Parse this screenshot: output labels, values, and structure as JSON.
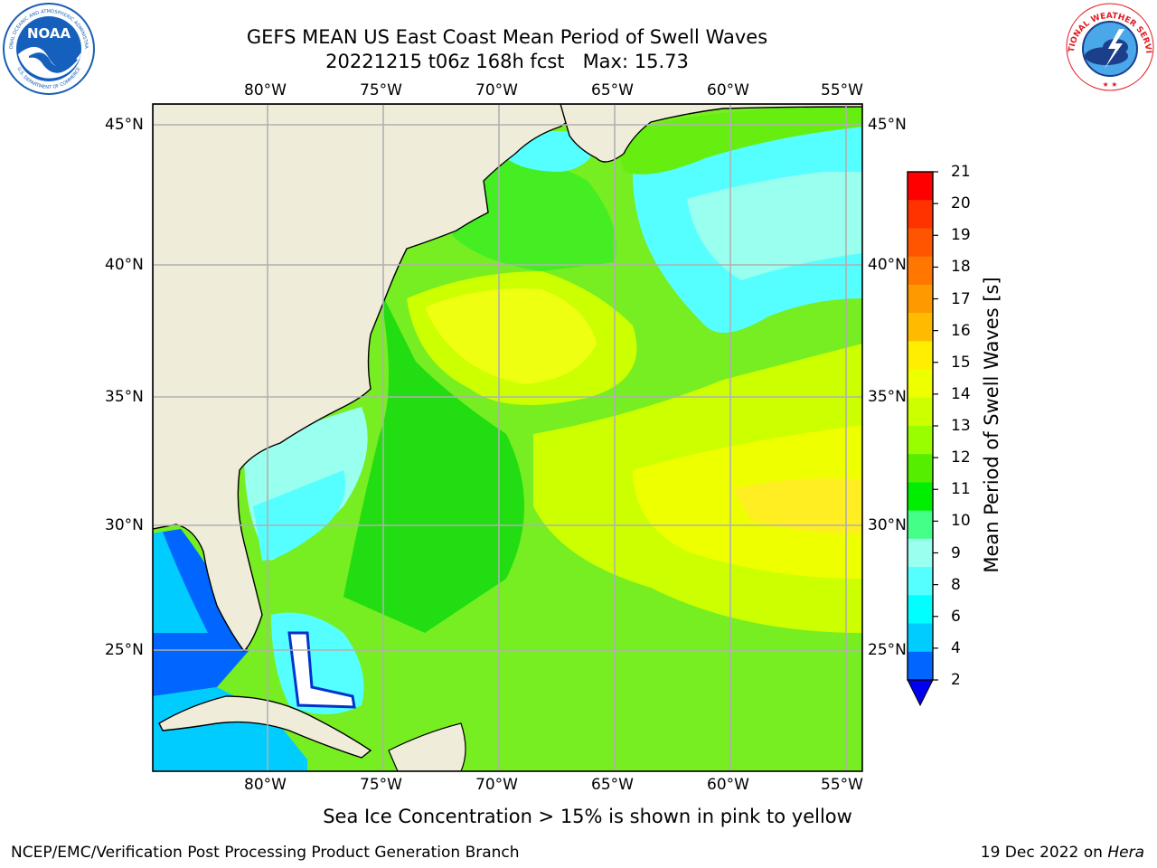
{
  "title": {
    "line1": "GEFS MEAN US East Coast Mean Period of Swell Waves",
    "line2": "20221215 t06z 168h fcst   Max: 15.73"
  },
  "logos": {
    "left": {
      "text": "NOAA",
      "arc_text": "NATIONAL OCEANIC AND ATMOSPHERIC ADMINISTRATION",
      "arc_text_bottom": "U.S. DEPARTMENT OF COMMERCE",
      "color": "#1a5fb4"
    },
    "right": {
      "arc_text": "NATIONAL WEATHER SERVICE",
      "color": "#e01b24"
    }
  },
  "map": {
    "type": "contour-map",
    "lon_labels": [
      "80°W",
      "75°W",
      "70°W",
      "65°W",
      "60°W",
      "55°W"
    ],
    "lat_labels": [
      "45°N",
      "40°N",
      "35°N",
      "30°N",
      "25°N"
    ],
    "land_color": "#efedda",
    "grid_color": "#b0b0b0"
  },
  "colorbar": {
    "label": "Mean Period of Swell Waves [s]",
    "ticks": [
      "21",
      "20",
      "19",
      "18",
      "17",
      "16",
      "15",
      "14",
      "13",
      "12",
      "11",
      "10",
      "9",
      "8",
      "6",
      "4",
      "2"
    ],
    "colors": [
      "#ff0000",
      "#ff3300",
      "#ff5500",
      "#ff7700",
      "#ff9900",
      "#ffbb00",
      "#ffee00",
      "#eeff00",
      "#ccff00",
      "#99ff00",
      "#55ee00",
      "#00ee00",
      "#44ff88",
      "#99ffee",
      "#55ffff",
      "#00ffff",
      "#00ccff",
      "#0066ff"
    ],
    "extend_color": "#0000ee"
  },
  "note": "Sea Ice Concentration > 15% is shown in pink to yellow",
  "footer": {
    "left": "NCEP/EMC/Verification Post Processing Product Generation Branch",
    "right_date": "19 Dec 2022 on ",
    "right_machine": "Hera"
  }
}
